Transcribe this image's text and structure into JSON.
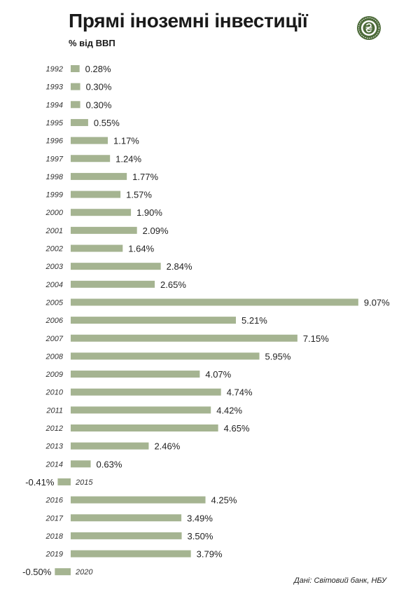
{
  "title": "Прямі іноземні інвестиції",
  "subtitle": "% від ВВП",
  "source": "Дані: Світовий банк, НБУ",
  "logo": {
    "icon": "hryvnia-coin-icon",
    "color": "#4d6b3a"
  },
  "colors": {
    "bar": "#a5b491",
    "text": "#222222"
  },
  "chart_data": {
    "type": "bar",
    "orientation": "horizontal",
    "categories": [
      "1992",
      "1993",
      "1994",
      "1995",
      "1996",
      "1997",
      "1998",
      "1999",
      "2000",
      "2001",
      "2002",
      "2003",
      "2004",
      "2005",
      "2006",
      "2007",
      "2008",
      "2009",
      "2010",
      "2011",
      "2012",
      "2013",
      "2014",
      "2015",
      "2016",
      "2017",
      "2018",
      "2019",
      "2020"
    ],
    "values": [
      0.28,
      0.3,
      0.3,
      0.55,
      1.17,
      1.24,
      1.77,
      1.57,
      1.9,
      2.09,
      1.64,
      2.84,
      2.65,
      9.07,
      5.21,
      7.15,
      5.95,
      4.07,
      4.74,
      4.42,
      4.65,
      2.46,
      0.63,
      -0.41,
      4.25,
      3.49,
      3.5,
      3.79,
      -0.5
    ],
    "labels": [
      "0.28%",
      "0.30%",
      "0.30%",
      "0.55%",
      "1.17%",
      "1.24%",
      "1.77%",
      "1.57%",
      "1.90%",
      "2.09%",
      "1.64%",
      "2.84%",
      "2.65%",
      "9.07%",
      "5.21%",
      "7.15%",
      "5.95%",
      "4.07%",
      "4.74%",
      "4.42%",
      "4.65%",
      "2.46%",
      "0.63%",
      "-0.41%",
      "4.25%",
      "3.49%",
      "3.50%",
      "3.79%",
      "-0.50%"
    ],
    "title": "Прямі іноземні інвестиції",
    "unit": "% від ВВП",
    "grid": false,
    "legend": "none"
  }
}
